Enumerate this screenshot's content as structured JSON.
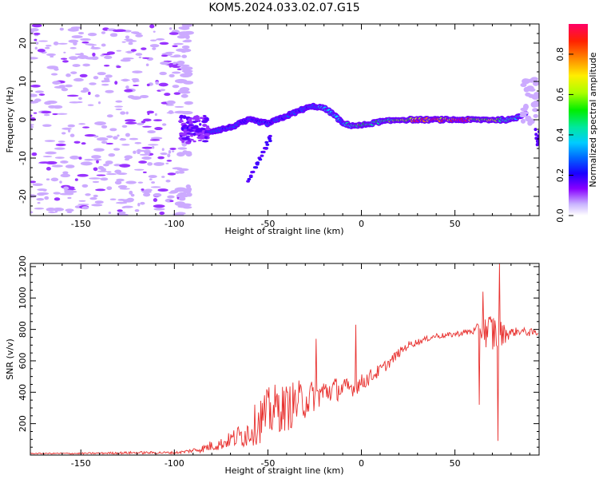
{
  "title": "KOM5.2024.033.02.07.G15",
  "colors": {
    "snr_line": "#e8312f",
    "colormap": [
      "#b7f0ff",
      "#9d6bff",
      "#5b00ff",
      "#0000ff",
      "#0088ff",
      "#00e8f0",
      "#00e060",
      "#55ff00",
      "#ffff00",
      "#ffaa00",
      "#ff3300",
      "#ff0066"
    ]
  },
  "chart_data": [
    {
      "type": "heatmap",
      "name": "spectrogram",
      "xlabel": "Height of straight line (km)",
      "ylabel": "Frequency (Hz)",
      "xlim": [
        -177,
        95
      ],
      "ylim": [
        -25,
        25
      ],
      "xticks": [
        -150,
        -100,
        -50,
        0,
        50
      ],
      "xtick_labels": [
        "-150",
        "-100",
        "-50",
        "0",
        "50"
      ],
      "yticks": [
        -20,
        -10,
        0,
        10,
        20
      ],
      "ytick_labels": [
        "-20",
        "-10",
        "0",
        "10",
        "20"
      ],
      "colorbar": {
        "label": "Normalized spectral amplitude",
        "range": [
          0,
          0.95
        ],
        "ticks": [
          0,
          0.2,
          0.4,
          0.6,
          0.8
        ],
        "tick_labels": [
          "0.0",
          "0.2",
          "0.4",
          "0.6",
          "0.8"
        ]
      },
      "ridge": {
        "x": [
          -95,
          -90,
          -85,
          -80,
          -75,
          -70,
          -65,
          -60,
          -55,
          -50,
          -45,
          -40,
          -35,
          -30,
          -25,
          -20,
          -15,
          -10,
          -5,
          0,
          5,
          10,
          15,
          20,
          25,
          30,
          35,
          40,
          45,
          50,
          55,
          60,
          65,
          70,
          75,
          80,
          85,
          88
        ],
        "y": [
          -2,
          -2.5,
          -3,
          -3,
          -2.5,
          -2,
          -1,
          0,
          -0.5,
          -1,
          0,
          1,
          2,
          3,
          3.5,
          3,
          1.5,
          -1,
          -1.5,
          -1.5,
          -1,
          -0.5,
          -0.3,
          0,
          0,
          0,
          0,
          0,
          0,
          0,
          0,
          0,
          0,
          0,
          0,
          0,
          1,
          2
        ],
        "amplitude": [
          0.2,
          0.2,
          0.22,
          0.25,
          0.25,
          0.22,
          0.25,
          0.2,
          0.22,
          0.25,
          0.25,
          0.25,
          0.22,
          0.25,
          0.25,
          0.35,
          0.32,
          0.3,
          0.4,
          0.5,
          0.4,
          0.45,
          0.5,
          0.55,
          0.6,
          0.8,
          0.7,
          0.85,
          0.75,
          0.7,
          0.9,
          0.6,
          0.5,
          0.65,
          0.45,
          0.45,
          0.35,
          0.3
        ]
      },
      "branch": {
        "x": [
          -60,
          -57,
          -54,
          -51,
          -48
        ],
        "y": [
          -16,
          -13,
          -10,
          -7,
          -4
        ],
        "amplitude": [
          0.2,
          0.2,
          0.2,
          0.18,
          0.15
        ]
      }
    },
    {
      "type": "line",
      "name": "snr",
      "xlabel": "Height of straight line (km)",
      "ylabel": "SNR (v/v)",
      "xlim": [
        -177,
        95
      ],
      "ylim": [
        0,
        1220
      ],
      "xticks": [
        -150,
        -100,
        -50,
        0,
        50
      ],
      "xtick_labels": [
        "-150",
        "-100",
        "-50",
        "0",
        "50"
      ],
      "yticks": [
        200,
        400,
        600,
        800,
        1000,
        1200
      ],
      "ytick_labels": [
        "200",
        "400",
        "600",
        "800",
        "1000",
        "1200"
      ],
      "series": [
        {
          "x": [
            -177,
            -150,
            -120,
            -100,
            -95,
            -90,
            -85,
            -80,
            -75,
            -70,
            -65,
            -60,
            -55,
            -50,
            -45,
            -40,
            -35,
            -30,
            -25,
            -20,
            -15,
            -10,
            -5,
            0,
            5,
            10,
            15,
            20,
            25,
            30,
            35,
            40,
            45,
            50,
            55,
            60,
            65,
            70,
            75,
            80,
            85,
            90,
            95
          ],
          "y": [
            10,
            10,
            15,
            15,
            20,
            30,
            40,
            60,
            70,
            100,
            120,
            150,
            220,
            260,
            300,
            300,
            330,
            350,
            380,
            400,
            420,
            420,
            430,
            460,
            500,
            540,
            590,
            650,
            700,
            720,
            740,
            760,
            760,
            770,
            780,
            790,
            790,
            780,
            770,
            780,
            790,
            780,
            780
          ],
          "noise": [
            3,
            5,
            8,
            8,
            10,
            15,
            25,
            35,
            40,
            50,
            80,
            100,
            150,
            170,
            160,
            150,
            150,
            120,
            100,
            90,
            80,
            70,
            60,
            55,
            50,
            40,
            35,
            30,
            25,
            20,
            18,
            18,
            18,
            18,
            20,
            25,
            80,
            150,
            80,
            30,
            25,
            25,
            25
          ]
        }
      ],
      "spikes": [
        {
          "x": -24,
          "y": 740
        },
        {
          "x": -3,
          "y": 830
        },
        {
          "x": 63,
          "y": 320
        },
        {
          "x": 65,
          "y": 1040
        },
        {
          "x": 73,
          "y": 90
        },
        {
          "x": 74,
          "y": 1220
        }
      ]
    }
  ]
}
